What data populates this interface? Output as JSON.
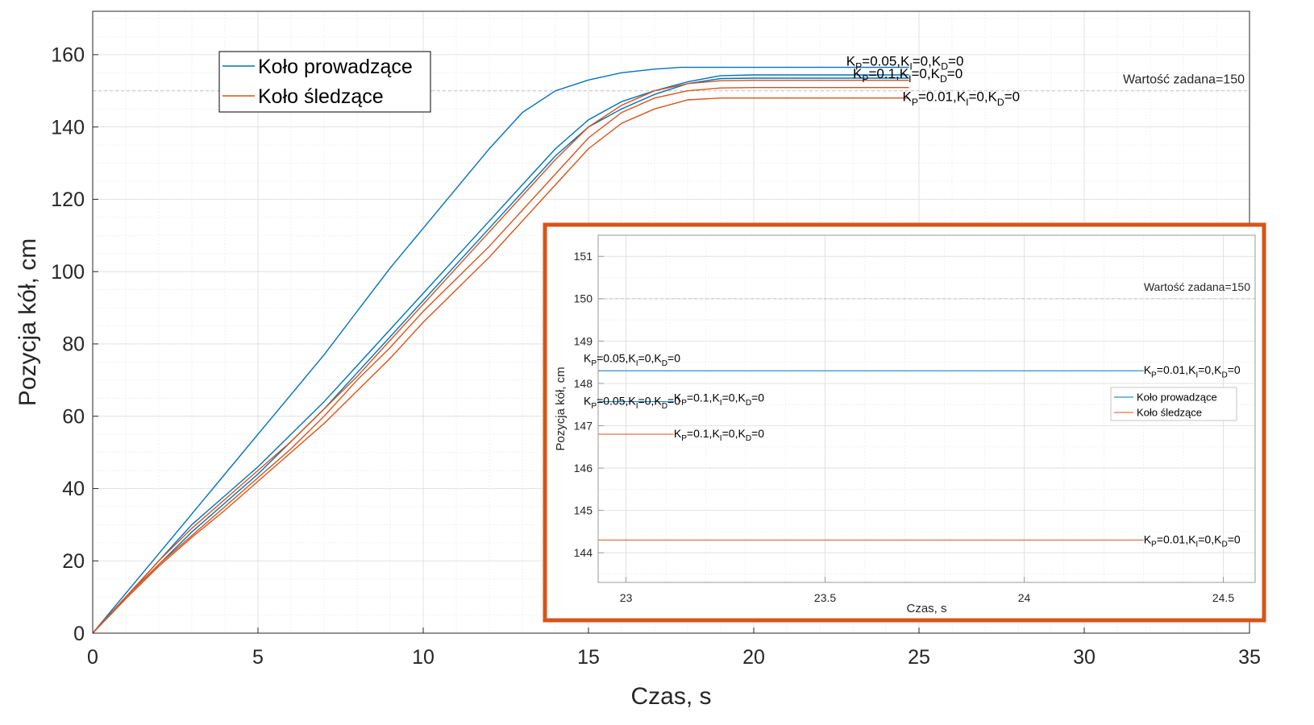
{
  "chart_data": [
    {
      "type": "line",
      "xlabel": "Czas, s",
      "ylabel": "Pozycja kół, cm",
      "xlim": [
        0,
        35
      ],
      "ylim": [
        0,
        172
      ],
      "xticks": [
        0,
        5,
        10,
        15,
        20,
        25,
        30,
        35
      ],
      "yticks": [
        0,
        20,
        40,
        60,
        80,
        100,
        120,
        140,
        160
      ],
      "grid": "on, with minor grid",
      "legend_placement": "top-left",
      "reference": {
        "label": "Wartość zadana=150",
        "value": 150
      },
      "series": [
        {
          "name": "Koło prowadzące",
          "color": "#0072BD",
          "x": [
            0,
            1,
            2,
            3,
            4,
            5,
            6,
            7,
            8,
            9,
            10,
            11,
            12,
            13,
            14,
            15,
            16,
            17,
            17.8,
            19,
            20,
            24.7
          ],
          "y": [
            0,
            11,
            22,
            33,
            44,
            55,
            66,
            77,
            89,
            101,
            112,
            123,
            134,
            144,
            150,
            153,
            155,
            156,
            156.5,
            156.5,
            156.5,
            156.5
          ]
        },
        {
          "name": "Koło prowadzące",
          "color": "#0072BD",
          "x": [
            0,
            1,
            2,
            3,
            4,
            5,
            6,
            7,
            8,
            9,
            10,
            11,
            12,
            13,
            14,
            15,
            16,
            17,
            18,
            19,
            20,
            24.7
          ],
          "y": [
            0,
            10,
            20,
            30,
            38,
            46,
            55,
            64,
            74,
            84,
            94,
            104,
            114,
            124,
            134,
            142,
            147,
            150,
            152.5,
            154.2,
            154.4,
            154.4
          ]
        },
        {
          "name": "Koło prowadzące",
          "color": "#0072BD",
          "x": [
            0,
            1,
            2,
            3,
            4,
            5,
            6,
            7,
            8,
            9,
            10,
            11,
            12,
            13,
            14,
            15,
            16,
            17,
            18,
            19,
            20,
            24.7
          ],
          "y": [
            0,
            10,
            19,
            28,
            36,
            44,
            53,
            62,
            72,
            82,
            92,
            102,
            112,
            122,
            132,
            140,
            145,
            149,
            152,
            153.4,
            153.5,
            153.5
          ]
        },
        {
          "name": "Koło śledzące",
          "color": "#D95319",
          "x": [
            0,
            1,
            2,
            3,
            4,
            5,
            6,
            7,
            8,
            9,
            10,
            11,
            12,
            13,
            14,
            15,
            16,
            17,
            18,
            19,
            20,
            24.7
          ],
          "y": [
            0,
            10,
            20,
            29,
            37,
            45,
            53,
            62,
            71,
            81,
            91,
            101,
            111,
            121,
            131,
            140,
            146,
            150,
            152,
            152.8,
            152.9,
            152.9
          ]
        },
        {
          "name": "Koło śledzące",
          "color": "#D95319",
          "x": [
            0,
            1,
            2,
            3,
            4,
            5,
            6,
            7,
            8,
            9,
            10,
            11,
            12,
            13,
            14,
            15,
            16,
            17,
            18,
            19,
            20,
            24.7
          ],
          "y": [
            0,
            10,
            19,
            27,
            35,
            43,
            51,
            60,
            70,
            79,
            89,
            98,
            107,
            117,
            127,
            137,
            144,
            148,
            150,
            150.8,
            150.9,
            150.9
          ]
        },
        {
          "name": "Koło śledzące",
          "color": "#D95319",
          "x": [
            0,
            1,
            2,
            3,
            4,
            5,
            6,
            7,
            8,
            9,
            10,
            11,
            12,
            13,
            14,
            15,
            16,
            17,
            18,
            19,
            20,
            24.7
          ],
          "y": [
            0,
            9.5,
            18.5,
            26.5,
            34,
            42,
            50,
            58,
            67,
            76,
            86,
            95,
            104,
            114,
            124,
            134,
            141,
            145,
            147.5,
            148,
            148,
            148
          ]
        }
      ],
      "annotations": [
        {
          "text": "K_P=0.05,K_I=0,K_D=0",
          "x": 22.8,
          "y": 156.5
        },
        {
          "text": "K_P=0.1,K_I=0,K_D=0",
          "x": 23.0,
          "y": 154.4
        },
        {
          "text": "K_P=0.01,K_I=0,K_D=0",
          "x": 24.5,
          "y": 148.0
        }
      ],
      "legend": [
        {
          "label": "Koło prowadzące",
          "color": "#0072BD"
        },
        {
          "label": "Koło śledzące",
          "color": "#D95319"
        }
      ]
    },
    {
      "type": "line",
      "xlabel": "Czas, s",
      "ylabel": "Pozycja kół, cm",
      "xlim": [
        22.93,
        24.58
      ],
      "ylim": [
        143.3,
        151.5
      ],
      "xticks": [
        23,
        23.5,
        24,
        24.5
      ],
      "yticks": [
        144,
        145,
        146,
        147,
        148,
        149,
        150,
        151
      ],
      "grid": "on, with minor grid",
      "legend_placement": "center-right",
      "border_color": "#D95319",
      "reference": {
        "label": "Wartość zadana=150",
        "value": 150
      },
      "series": [
        {
          "name": "Koło prowadzące",
          "color": "#0072BD",
          "x": [
            22.93,
            24.3
          ],
          "y": [
            148.3,
            148.3
          ]
        },
        {
          "name": "Koło prowadzące",
          "color": "#0072BD",
          "x": [
            22.93,
            23.12
          ],
          "y": [
            147.57,
            147.57
          ]
        },
        {
          "name": "Koło śledzące",
          "color": "#D95319",
          "x": [
            22.93,
            23.12
          ],
          "y": [
            146.8,
            146.8
          ]
        },
        {
          "name": "Koło śledzące",
          "color": "#D95319",
          "x": [
            22.93,
            24.3
          ],
          "y": [
            144.3,
            144.3
          ]
        }
      ],
      "annotations": [
        {
          "text": "K_P=0.05,K_I=0,K_D=0",
          "x": 22.93,
          "y": 148.5
        },
        {
          "text": "K_P=0.01,K_I=0,K_D=0",
          "x": 24.3,
          "y": 148.3
        },
        {
          "text": "K_P=0.05,K_I=0,K_D=0",
          "x": 22.93,
          "y": 147.57
        },
        {
          "text": "K_P=0.1,K_I=0,K_D=0",
          "x": 23.12,
          "y": 147.57
        },
        {
          "text": "K_P=0.1,K_I=0,K_D=0",
          "x": 23.12,
          "y": 146.8
        },
        {
          "text": "K_P=0.01,K_I=0,K_D=0",
          "x": 24.3,
          "y": 144.3
        }
      ],
      "legend": [
        {
          "label": "Koło prowadzące",
          "color": "#0072BD"
        },
        {
          "label": "Koło śledzące",
          "color": "#D95319"
        }
      ]
    }
  ]
}
